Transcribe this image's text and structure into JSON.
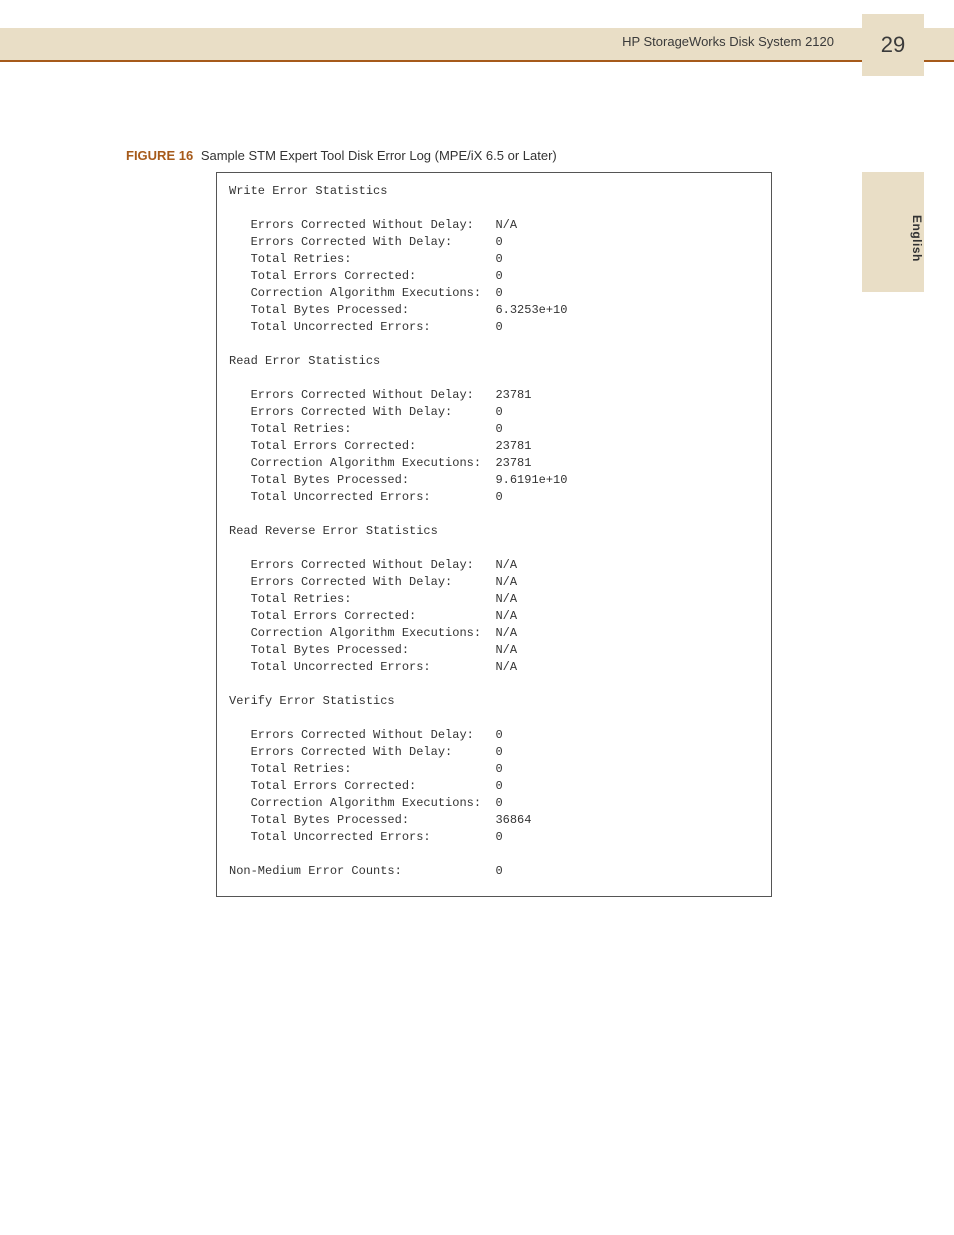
{
  "header": {
    "title": "HP StorageWorks Disk System 2120",
    "page_number": "29"
  },
  "side_tab": {
    "label": "English"
  },
  "figure": {
    "label": "FIGURE 16",
    "caption": "Sample STM Expert Tool Disk Error Log (MPE/iX 6.5 or Later)"
  },
  "log": {
    "sections": [
      {
        "title": "Write Error Statistics",
        "rows": [
          {
            "label": "Errors Corrected Without Delay:",
            "value": "N/A"
          },
          {
            "label": "Errors Corrected With Delay:",
            "value": "0"
          },
          {
            "label": "Total Retries:",
            "value": "0"
          },
          {
            "label": "Total Errors Corrected:",
            "value": "0"
          },
          {
            "label": "Correction Algorithm Executions:",
            "value": "0"
          },
          {
            "label": "Total Bytes Processed:",
            "value": "6.3253e+10"
          },
          {
            "label": "Total Uncorrected Errors:",
            "value": "0"
          }
        ]
      },
      {
        "title": "Read Error Statistics",
        "rows": [
          {
            "label": "Errors Corrected Without Delay:",
            "value": "23781"
          },
          {
            "label": "Errors Corrected With Delay:",
            "value": "0"
          },
          {
            "label": "Total Retries:",
            "value": "0"
          },
          {
            "label": "Total Errors Corrected:",
            "value": "23781"
          },
          {
            "label": "Correction Algorithm Executions:",
            "value": "23781"
          },
          {
            "label": "Total Bytes Processed:",
            "value": "9.6191e+10"
          },
          {
            "label": "Total Uncorrected Errors:",
            "value": "0"
          }
        ]
      },
      {
        "title": "Read Reverse Error Statistics",
        "rows": [
          {
            "label": "Errors Corrected Without Delay:",
            "value": "N/A"
          },
          {
            "label": "Errors Corrected With Delay:",
            "value": "N/A"
          },
          {
            "label": "Total Retries:",
            "value": "N/A"
          },
          {
            "label": "Total Errors Corrected:",
            "value": "N/A"
          },
          {
            "label": "Correction Algorithm Executions:",
            "value": "N/A"
          },
          {
            "label": "Total Bytes Processed:",
            "value": "N/A"
          },
          {
            "label": "Total Uncorrected Errors:",
            "value": "N/A"
          }
        ]
      },
      {
        "title": "Verify Error Statistics",
        "rows": [
          {
            "label": "Errors Corrected Without Delay:",
            "value": "0"
          },
          {
            "label": "Errors Corrected With Delay:",
            "value": "0"
          },
          {
            "label": "Total Retries:",
            "value": "0"
          },
          {
            "label": "Total Errors Corrected:",
            "value": "0"
          },
          {
            "label": "Correction Algorithm Executions:",
            "value": "0"
          },
          {
            "label": "Total Bytes Processed:",
            "value": "36864"
          },
          {
            "label": "Total Uncorrected Errors:",
            "value": "0"
          }
        ]
      }
    ],
    "footer_row": {
      "label": "Non-Medium Error Counts:",
      "value": "0"
    }
  }
}
